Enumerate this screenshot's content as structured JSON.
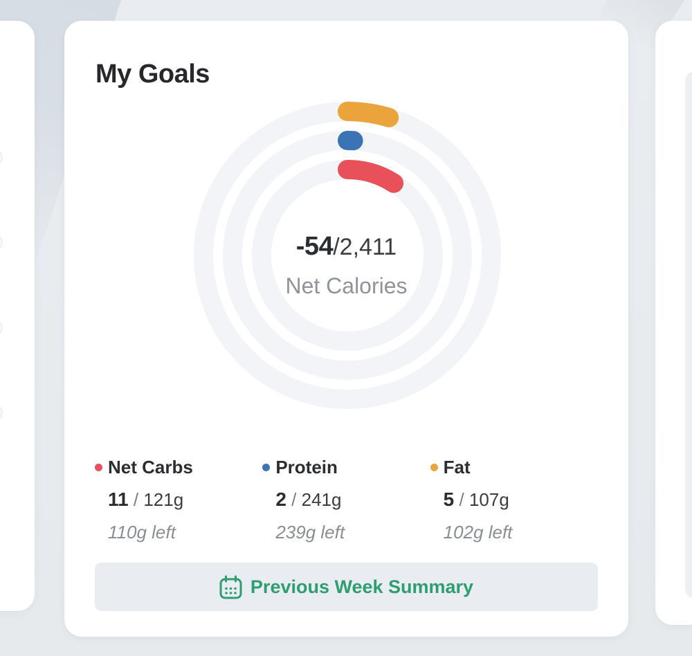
{
  "page": {
    "background_color": "#E8EBEF",
    "accent_green": "#2E9E71"
  },
  "card": {
    "title": "My Goals",
    "summary": {
      "value": "-54",
      "separator": "/",
      "goal": "2,411",
      "caption": "Net Calories"
    },
    "macros": [
      {
        "name": "Net Carbs",
        "color": "#E8515A",
        "consumed": "11",
        "separator": "/",
        "goal": "121g",
        "left": "110g left"
      },
      {
        "name": "Protein",
        "color": "#3B74B4",
        "consumed": "2",
        "separator": "/",
        "goal": "241g",
        "left": "239g left"
      },
      {
        "name": "Fat",
        "color": "#EBA43C",
        "consumed": "5",
        "separator": "/",
        "goal": "107g",
        "left": "102g left"
      }
    ],
    "button": {
      "label": "Previous Week Summary",
      "icon": "calendar-icon",
      "color": "#2E9E71"
    }
  },
  "chart_data": {
    "type": "radial-progress",
    "title": "My Goals",
    "center": {
      "value": -54,
      "goal": 2411,
      "label": "Net Calories"
    },
    "track_color": "#F2F4F8",
    "series": [
      {
        "name": "Fat",
        "ring": "outer",
        "color": "#EBA43C",
        "consumed": 5,
        "goal": 107
      },
      {
        "name": "Protein",
        "ring": "middle",
        "color": "#3B74B4",
        "consumed": 2,
        "goal": 241
      },
      {
        "name": "Net Carbs",
        "ring": "inner",
        "color": "#E8515A",
        "consumed": 11,
        "goal": 121
      }
    ]
  }
}
